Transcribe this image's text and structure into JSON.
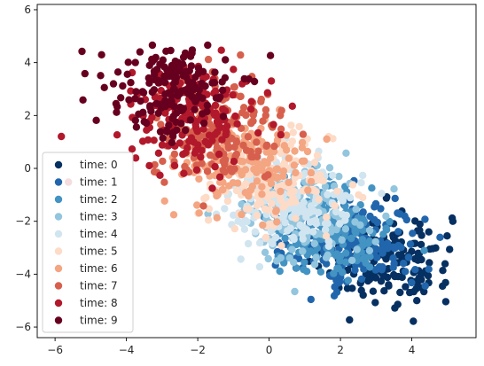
{
  "chart_data": {
    "type": "scatter",
    "title": "",
    "xlabel": "",
    "ylabel": "",
    "xlim": [
      -6.5,
      5.8
    ],
    "ylim": [
      -6.4,
      6.2
    ],
    "xticks": [
      -6,
      -4,
      -2,
      0,
      2,
      4
    ],
    "yticks": [
      -6,
      -4,
      -2,
      0,
      2,
      4,
      6
    ],
    "grid": false,
    "legend_position": "lower-left",
    "series": [
      {
        "name": "time: 0",
        "color": "#053061",
        "center": [
          3.3,
          -3.4
        ],
        "spread": [
          0.9,
          0.9
        ],
        "count": 170
      },
      {
        "name": "time: 1",
        "color": "#2166ac",
        "center": [
          2.5,
          -2.9
        ],
        "spread": [
          0.9,
          0.9
        ],
        "count": 170
      },
      {
        "name": "time: 2",
        "color": "#4393c3",
        "center": [
          1.7,
          -2.3
        ],
        "spread": [
          0.9,
          0.9
        ],
        "count": 170
      },
      {
        "name": "time: 3",
        "color": "#92c5de",
        "center": [
          0.9,
          -1.7
        ],
        "spread": [
          0.9,
          0.9
        ],
        "count": 170
      },
      {
        "name": "time: 4",
        "color": "#d1e5f0",
        "center": [
          0.6,
          -1.2
        ],
        "spread": [
          0.9,
          0.9
        ],
        "count": 170
      },
      {
        "name": "time: 5",
        "color": "#fddbc7",
        "center": [
          0.0,
          -0.5
        ],
        "spread": [
          0.9,
          0.9
        ],
        "count": 170
      },
      {
        "name": "time: 6",
        "color": "#f4a582",
        "center": [
          -0.7,
          0.3
        ],
        "spread": [
          0.9,
          0.9
        ],
        "count": 170
      },
      {
        "name": "time: 7",
        "color": "#d6604d",
        "center": [
          -1.4,
          1.3
        ],
        "spread": [
          0.9,
          0.9
        ],
        "count": 170
      },
      {
        "name": "time: 8",
        "color": "#b2182b",
        "center": [
          -2.1,
          2.0
        ],
        "spread": [
          0.9,
          0.9
        ],
        "count": 170
      },
      {
        "name": "time: 9",
        "color": "#67001f",
        "center": [
          -2.8,
          3.0
        ],
        "spread": [
          0.9,
          0.9
        ],
        "count": 170
      }
    ]
  }
}
